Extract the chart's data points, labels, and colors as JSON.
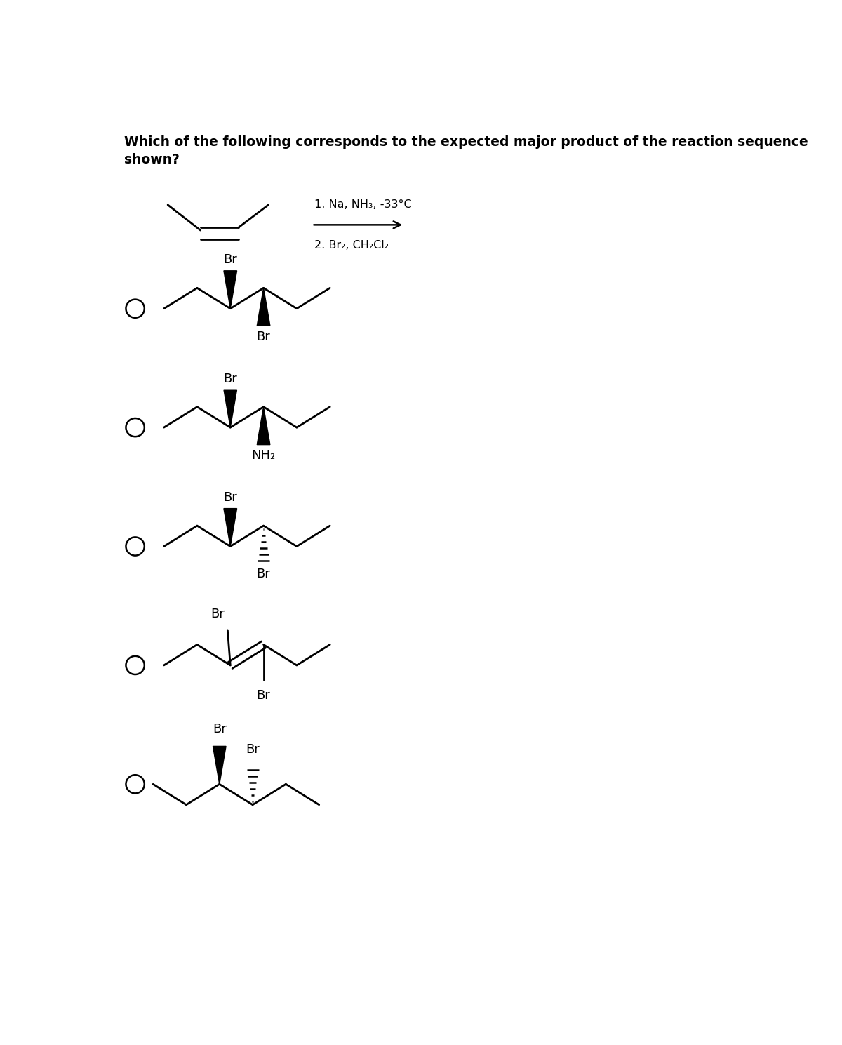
{
  "title_line1": "Which of the following corresponds to the expected major product of the reaction sequence",
  "title_line2": "shown?",
  "title_fontsize": 13.5,
  "background_color": "#ffffff",
  "line_color": "#000000",
  "rxn_condition1": "1. Na, NH₃, -33°C",
  "rxn_condition2": "2. Br₂, CH₂Cl₂"
}
